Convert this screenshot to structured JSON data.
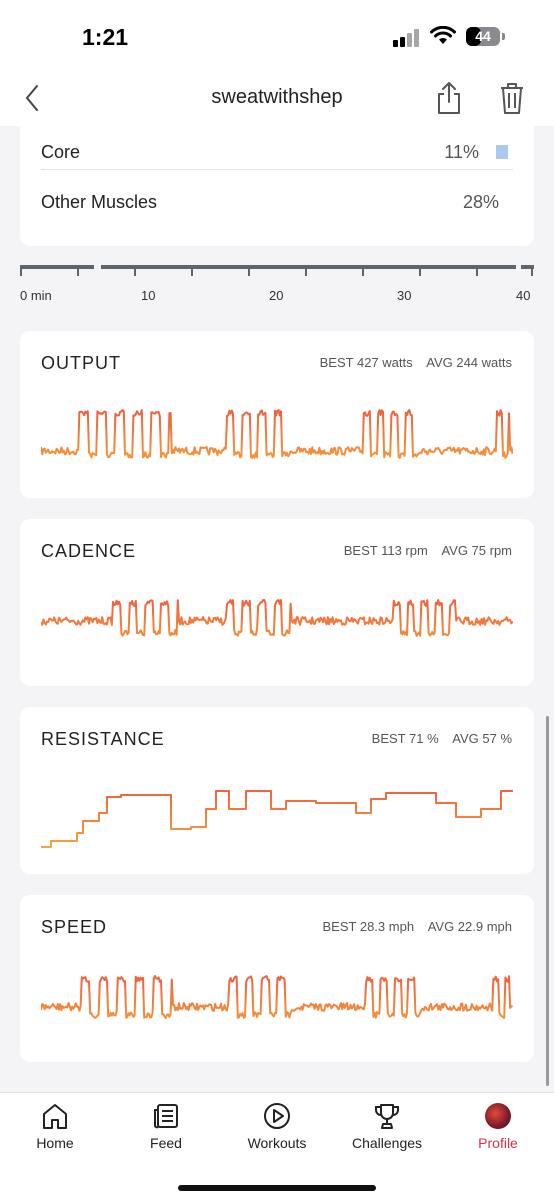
{
  "status_bar": {
    "time": "1:21",
    "battery": "44",
    "battery_level": 0.44
  },
  "nav": {
    "title": "sweatwithshep"
  },
  "muscles": [
    {
      "name": "Core",
      "percent": "11%"
    },
    {
      "name": "Other Muscles",
      "percent": "28%"
    }
  ],
  "timeline": {
    "ticks": [
      "0 min",
      "10",
      "20",
      "30",
      "40"
    ]
  },
  "metrics": [
    {
      "title": "OUTPUT",
      "best": "BEST 427 watts",
      "avg": "AVG 244 watts"
    },
    {
      "title": "CADENCE",
      "best": "BEST 113 rpm",
      "avg": "AVG 75 rpm"
    },
    {
      "title": "RESISTANCE",
      "best": "BEST 71 %",
      "avg": "AVG 57 %"
    },
    {
      "title": "SPEED",
      "best": "BEST 28.3 mph",
      "avg": "AVG 22.9 mph"
    }
  ],
  "tabs": [
    {
      "label": "Home",
      "icon": "house-icon"
    },
    {
      "label": "Feed",
      "icon": "feed-icon"
    },
    {
      "label": "Workouts",
      "icon": "play-circle-icon"
    },
    {
      "label": "Challenges",
      "icon": "trophy-icon"
    },
    {
      "label": "Profile",
      "icon": "avatar",
      "active": true
    }
  ],
  "colors": {
    "accent": "#d9304a",
    "chart_top": "#ee4b3f",
    "chart_bottom": "#f6b23a",
    "muscle_bar": "#aac9ef"
  }
}
